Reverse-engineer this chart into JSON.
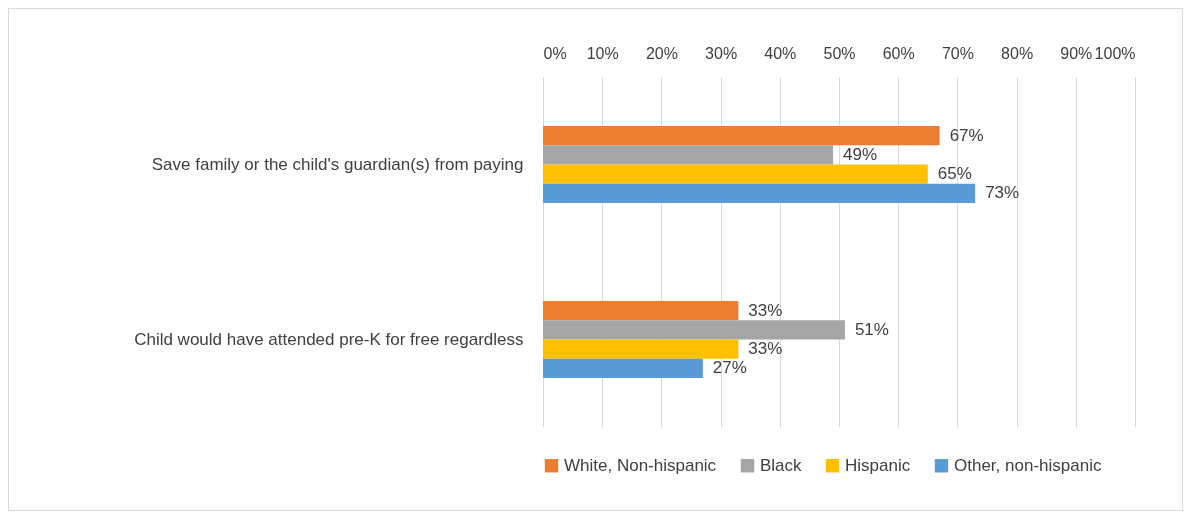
{
  "chart_data": {
    "type": "bar",
    "orientation": "horizontal",
    "categories": [
      "Save family or the child's guardian(s) from paying",
      "Child would have attended pre-K for free regardless"
    ],
    "series": [
      {
        "name": "White, Non-hispanic",
        "color": "#ed7d31",
        "values": [
          67,
          33
        ],
        "value_labels": [
          "67%",
          "33%"
        ]
      },
      {
        "name": "Black",
        "color": "#a5a5a5",
        "values": [
          49,
          51
        ],
        "value_labels": [
          "49%",
          "51%"
        ]
      },
      {
        "name": "Hispanic",
        "color": "#ffc000",
        "values": [
          65,
          33
        ],
        "value_labels": [
          "65%",
          "33%"
        ]
      },
      {
        "name": "Other, non-hispanic",
        "color": "#5b9bd5",
        "values": [
          73,
          27
        ],
        "value_labels": [
          "73%",
          "27%"
        ]
      }
    ],
    "xlim": [
      0,
      100
    ],
    "xticks": [
      {
        "value": 0,
        "label": "0%"
      },
      {
        "value": 10,
        "label": "10%"
      },
      {
        "value": 20,
        "label": "20%"
      },
      {
        "value": 30,
        "label": "30%"
      },
      {
        "value": 40,
        "label": "40%"
      },
      {
        "value": 50,
        "label": "50%"
      },
      {
        "value": 60,
        "label": "60%"
      },
      {
        "value": 70,
        "label": "70%"
      },
      {
        "value": 80,
        "label": "80%"
      },
      {
        "value": 90,
        "label": "90%"
      },
      {
        "value": 100,
        "label": "100%"
      }
    ],
    "grid": "x",
    "legend": "bottom"
  }
}
